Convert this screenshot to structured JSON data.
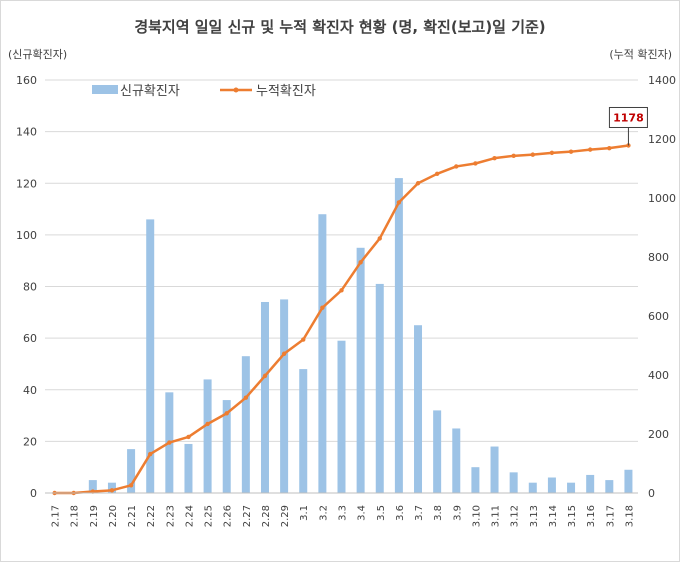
{
  "chart_data": {
    "type": "bar+line",
    "title": "경북지역 일일 신규 및 누적 확진자 현황 (명, 확진(보고)일 기준)",
    "ylabel_left": "(신규확진자)",
    "ylabel_right": "(누적 확진자)",
    "ylim_left": [
      0,
      160
    ],
    "ylim_right": [
      0,
      1400
    ],
    "yticks_left": [
      0,
      20,
      40,
      60,
      80,
      100,
      120,
      140,
      160
    ],
    "yticks_right": [
      0,
      200,
      400,
      600,
      800,
      1000,
      1200,
      1400
    ],
    "grid": true,
    "legend_position": "top-left",
    "categories": [
      "2.17",
      "2.18",
      "2.19",
      "2.20",
      "2.21",
      "2.22",
      "2.23",
      "2.24",
      "2.25",
      "2.26",
      "2.27",
      "2.28",
      "2.29",
      "3.1",
      "3.2",
      "3.3",
      "3.4",
      "3.5",
      "3.6",
      "3.7",
      "3.8",
      "3.9",
      "3.10",
      "3.11",
      "3.12",
      "3.13",
      "3.14",
      "3.15",
      "3.16",
      "3.17",
      "3.18"
    ],
    "series": [
      {
        "name": "신규확진자",
        "kind": "bar",
        "axis": "left",
        "color": "#9dc3e6",
        "values": [
          0,
          0,
          5,
          4,
          17,
          106,
          39,
          19,
          44,
          36,
          53,
          74,
          75,
          48,
          108,
          59,
          95,
          81,
          122,
          65,
          32,
          25,
          10,
          18,
          8,
          4,
          6,
          4,
          7,
          5,
          9
        ]
      },
      {
        "name": "누적확진자",
        "kind": "line",
        "axis": "right",
        "color": "#ed7d31",
        "values": [
          0,
          0,
          5,
          9,
          26,
          132,
          171,
          190,
          234,
          270,
          323,
          397,
          472,
          520,
          628,
          687,
          782,
          863,
          985,
          1050,
          1082,
          1107,
          1117,
          1135,
          1143,
          1147,
          1153,
          1157,
          1164,
          1169,
          1178
        ]
      }
    ],
    "annotation": {
      "text": "1178"
    }
  }
}
